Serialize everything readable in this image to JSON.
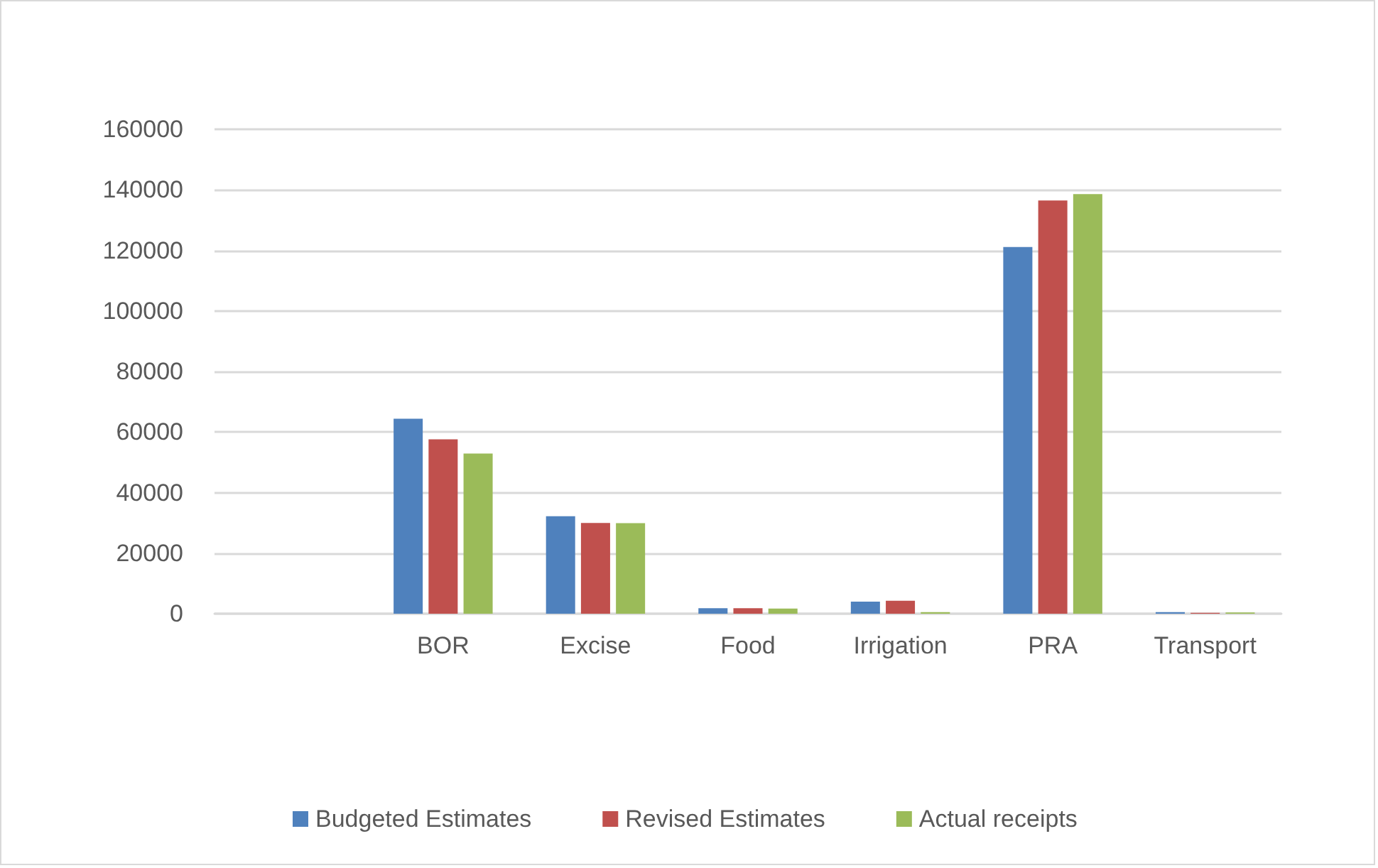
{
  "chart_data": {
    "type": "bar",
    "categories": [
      null,
      "BOR",
      "Excise",
      "Food",
      "Irrigation",
      "PRA",
      "Transport"
    ],
    "series": [
      {
        "name": "Budgeted Estimates",
        "color": "#4f81bd",
        "values": [
          null,
          64400,
          32200,
          1800,
          4000,
          121100,
          500
        ]
      },
      {
        "name": "Revised Estimates",
        "color": "#c0504d",
        "values": [
          null,
          57600,
          30000,
          1800,
          4300,
          136500,
          300
        ]
      },
      {
        "name": "Actual receipts",
        "color": "#9bbb59",
        "values": [
          null,
          52900,
          29900,
          1700,
          500,
          138600,
          400
        ]
      }
    ],
    "ylim": [
      0,
      160000
    ],
    "yticks": [
      0,
      20000,
      40000,
      60000,
      80000,
      100000,
      120000,
      140000,
      160000
    ],
    "grid": "y",
    "legend": "bottom"
  }
}
